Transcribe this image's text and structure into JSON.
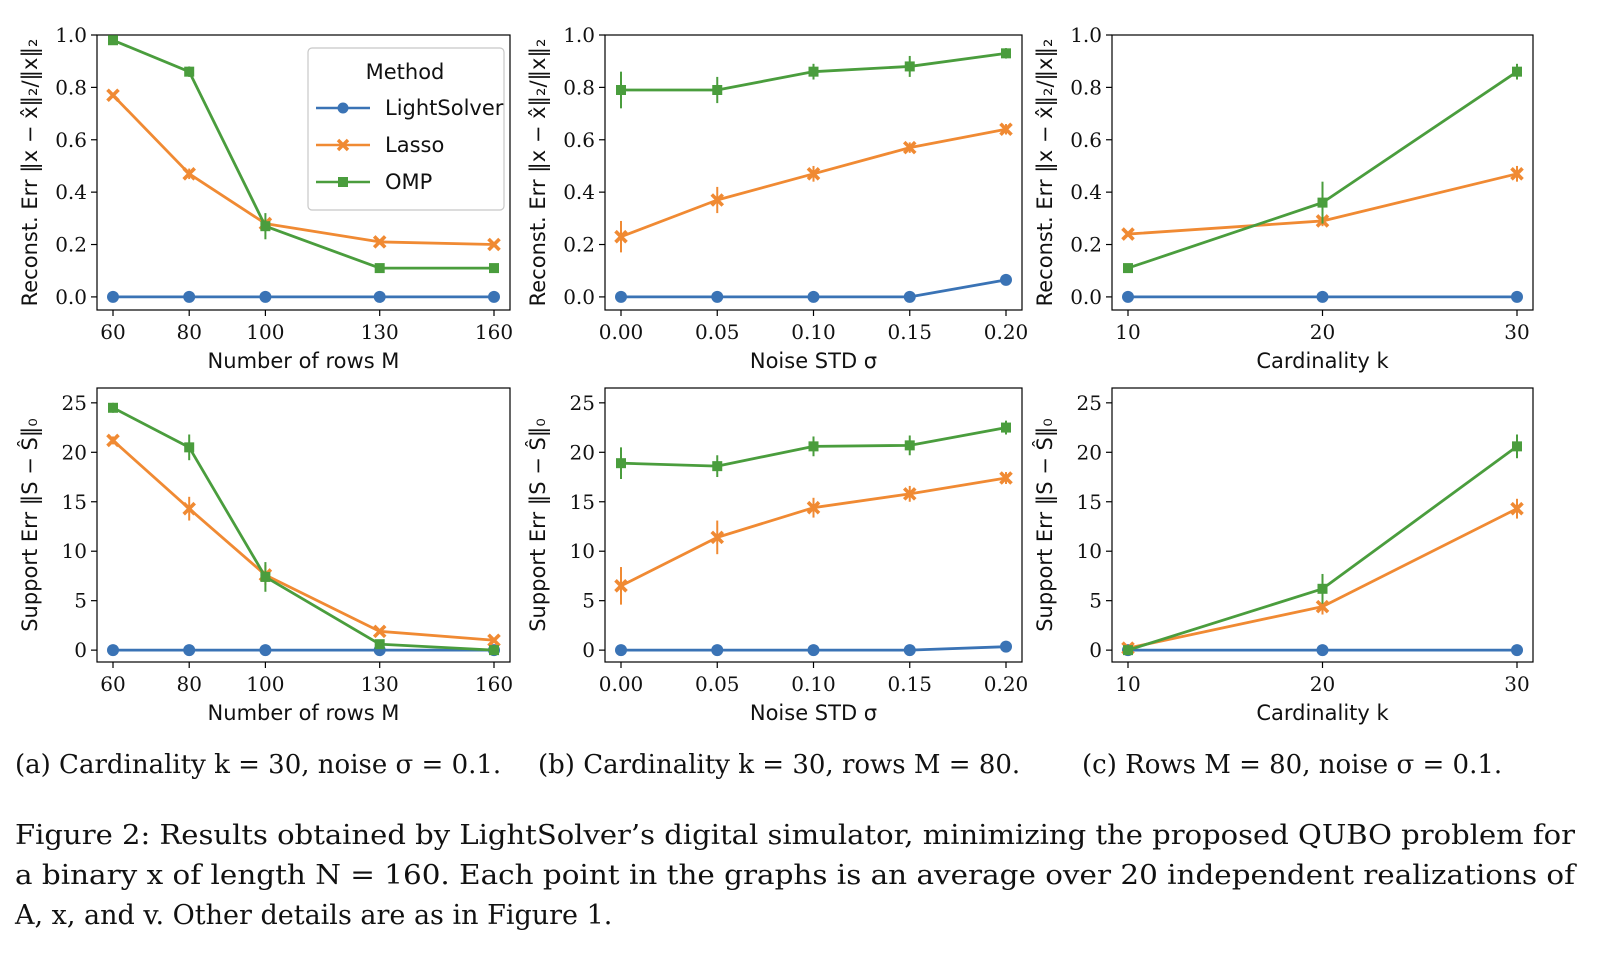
{
  "colors": {
    "LightSolver": "#3a73b5",
    "Lasso": "#f08a33",
    "OMP": "#4a9d3d"
  },
  "legend": {
    "title": "Method",
    "entries": [
      "LightSolver",
      "Lasso",
      "OMP"
    ]
  },
  "captions": [
    "(a) Cardinality k = 30, noise σ = 0.1.",
    "(b) Cardinality k = 30, rows M = 80.",
    "(c) Rows M = 80, noise σ = 0.1."
  ],
  "figure_caption": {
    "line1": "Figure 2: Results obtained by LightSolver’s digital simulator, minimizing the proposed QUBO problem for",
    "line2": "a binary x of length N = 160. Each point in the graphs is an average over 20 independent realizations of",
    "line3": "A, x, and v. Other details are as in Figure 1."
  },
  "chart_data": [
    {
      "type": "line",
      "panel": "a-top",
      "x": [
        60,
        80,
        100,
        130,
        160
      ],
      "xticks": [
        "60",
        "80",
        "100",
        "130",
        "160"
      ],
      "xlabel": "Number of rows M",
      "ylabel": "Reconst. Err ‖x − x̂‖₂/‖x‖₂",
      "ylim": [
        -0.05,
        1.0
      ],
      "yticks": [
        "0.0",
        "0.2",
        "0.4",
        "0.6",
        "0.8",
        "1.0"
      ],
      "yticks_values": [
        0.0,
        0.2,
        0.4,
        0.6,
        0.8,
        1.0
      ],
      "legend": "inside upper right",
      "series": [
        {
          "name": "LightSolver",
          "values": [
            0.0,
            0.0,
            0.0,
            0.0,
            0.0
          ],
          "err": [
            0,
            0,
            0,
            0,
            0
          ]
        },
        {
          "name": "Lasso",
          "values": [
            0.77,
            0.47,
            0.28,
            0.21,
            0.2
          ],
          "err": [
            0.01,
            0.02,
            0.02,
            0.01,
            0.01
          ]
        },
        {
          "name": "OMP",
          "values": [
            0.98,
            0.86,
            0.27,
            0.11,
            0.11
          ],
          "err": [
            0.01,
            0.02,
            0.05,
            0.01,
            0.01
          ]
        }
      ]
    },
    {
      "type": "line",
      "panel": "b-top",
      "x": [
        0.0,
        0.05,
        0.1,
        0.15,
        0.2
      ],
      "xticks": [
        "0.00",
        "0.05",
        "0.10",
        "0.15",
        "0.20"
      ],
      "xlabel": "Noise STD σ",
      "ylabel": "Reconst. Err ‖x − x̂‖₂/‖x‖₂",
      "ylim": [
        -0.05,
        1.0
      ],
      "yticks": [
        "0.0",
        "0.2",
        "0.4",
        "0.6",
        "0.8",
        "1.0"
      ],
      "yticks_values": [
        0.0,
        0.2,
        0.4,
        0.6,
        0.8,
        1.0
      ],
      "series": [
        {
          "name": "LightSolver",
          "values": [
            0.0,
            0.0,
            0.0,
            0.0,
            0.065
          ],
          "err": [
            0,
            0,
            0,
            0,
            0.01
          ]
        },
        {
          "name": "Lasso",
          "values": [
            0.23,
            0.37,
            0.47,
            0.57,
            0.64
          ],
          "err": [
            0.06,
            0.05,
            0.03,
            0.02,
            0.02
          ]
        },
        {
          "name": "OMP",
          "values": [
            0.79,
            0.79,
            0.86,
            0.88,
            0.93
          ],
          "err": [
            0.07,
            0.05,
            0.03,
            0.04,
            0.02
          ]
        }
      ]
    },
    {
      "type": "line",
      "panel": "c-top",
      "x": [
        10,
        20,
        30
      ],
      "xticks": [
        "10",
        "20",
        "30"
      ],
      "xlabel": "Cardinality k",
      "ylabel": "Reconst. Err ‖x − x̂‖₂/‖x‖₂",
      "ylim": [
        -0.05,
        1.0
      ],
      "yticks": [
        "0.0",
        "0.2",
        "0.4",
        "0.6",
        "0.8",
        "1.0"
      ],
      "yticks_values": [
        0.0,
        0.2,
        0.4,
        0.6,
        0.8,
        1.0
      ],
      "series": [
        {
          "name": "LightSolver",
          "values": [
            0.0,
            0.0,
            0.0
          ],
          "err": [
            0,
            0,
            0
          ]
        },
        {
          "name": "Lasso",
          "values": [
            0.24,
            0.29,
            0.47
          ],
          "err": [
            0.01,
            0.02,
            0.03
          ]
        },
        {
          "name": "OMP",
          "values": [
            0.11,
            0.36,
            0.86
          ],
          "err": [
            0.01,
            0.08,
            0.03
          ]
        }
      ]
    },
    {
      "type": "line",
      "panel": "a-bottom",
      "x": [
        60,
        80,
        100,
        130,
        160
      ],
      "xticks": [
        "60",
        "80",
        "100",
        "130",
        "160"
      ],
      "xlabel": "Number of rows M",
      "ylabel": "Support Err ‖S − Ŝ‖₀",
      "ylim": [
        -1.2,
        26.5
      ],
      "yticks": [
        "0",
        "5",
        "10",
        "15",
        "20",
        "25"
      ],
      "yticks_values": [
        0,
        5,
        10,
        15,
        20,
        25
      ],
      "series": [
        {
          "name": "LightSolver",
          "values": [
            0.0,
            0.0,
            0.0,
            0.0,
            0.0
          ],
          "err": [
            0,
            0,
            0,
            0,
            0
          ]
        },
        {
          "name": "Lasso",
          "values": [
            21.2,
            14.3,
            7.6,
            1.9,
            1.0
          ],
          "err": [
            0.4,
            1.2,
            1.0,
            0.2,
            0.2
          ]
        },
        {
          "name": "OMP",
          "values": [
            24.5,
            20.5,
            7.4,
            0.6,
            0.0
          ],
          "err": [
            0.5,
            1.3,
            1.5,
            0.3,
            0
          ]
        }
      ]
    },
    {
      "type": "line",
      "panel": "b-bottom",
      "x": [
        0.0,
        0.05,
        0.1,
        0.15,
        0.2
      ],
      "xticks": [
        "0.00",
        "0.05",
        "0.10",
        "0.15",
        "0.20"
      ],
      "xlabel": "Noise STD σ",
      "ylabel": "Support Err ‖S − Ŝ‖₀",
      "ylim": [
        -1.2,
        26.5
      ],
      "yticks": [
        "0",
        "5",
        "10",
        "15",
        "20",
        "25"
      ],
      "yticks_values": [
        0,
        5,
        10,
        15,
        20,
        25
      ],
      "series": [
        {
          "name": "LightSolver",
          "values": [
            0.0,
            0.0,
            0.0,
            0.0,
            0.35
          ],
          "err": [
            0,
            0,
            0,
            0,
            0.1
          ]
        },
        {
          "name": "Lasso",
          "values": [
            6.5,
            11.4,
            14.4,
            15.8,
            17.4
          ],
          "err": [
            1.9,
            1.7,
            1.0,
            0.8,
            0.6
          ]
        },
        {
          "name": "OMP",
          "values": [
            18.9,
            18.6,
            20.6,
            20.7,
            22.5
          ],
          "err": [
            1.6,
            1.1,
            1.0,
            1.0,
            0.7
          ]
        }
      ]
    },
    {
      "type": "line",
      "panel": "c-bottom",
      "x": [
        10,
        20,
        30
      ],
      "xticks": [
        "10",
        "20",
        "30"
      ],
      "xlabel": "Cardinality k",
      "ylabel": "Support Err ‖S − Ŝ‖₀",
      "ylim": [
        -1.2,
        26.5
      ],
      "yticks": [
        "0",
        "5",
        "10",
        "15",
        "20",
        "25"
      ],
      "yticks_values": [
        0,
        5,
        10,
        15,
        20,
        25
      ],
      "series": [
        {
          "name": "LightSolver",
          "values": [
            0.0,
            0.0,
            0.0
          ],
          "err": [
            0,
            0,
            0
          ]
        },
        {
          "name": "Lasso",
          "values": [
            0.2,
            4.4,
            14.3
          ],
          "err": [
            0.2,
            0.8,
            1.0
          ]
        },
        {
          "name": "OMP",
          "values": [
            0.0,
            6.2,
            20.6
          ],
          "err": [
            0.1,
            1.5,
            1.2
          ]
        }
      ]
    }
  ]
}
